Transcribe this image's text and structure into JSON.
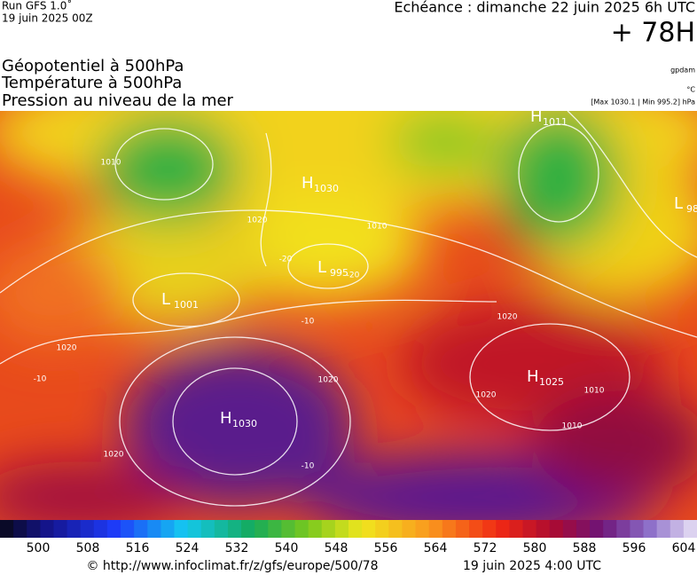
{
  "header": {
    "run": "Run GFS 1.0˚",
    "run_date": "19 juin 2025 00Z",
    "forecast": "Echéance : dimanche 22 juin 2025 6h UTC",
    "lead": "+ 78H",
    "titles": [
      "Géopotentiel à 500hPa",
      "Température à 500hPa",
      "Pression au niveau de la mer"
    ],
    "units": [
      "gpdam",
      "°C",
      "[Max 1030.1 | Min 995.2] hPa"
    ]
  },
  "map": {
    "pressure_centers": [
      {
        "type": "H",
        "value": "1011"
      },
      {
        "type": "L",
        "value": "98"
      },
      {
        "type": "H",
        "value": "1030"
      },
      {
        "type": "L",
        "value": "995"
      },
      {
        "type": "L",
        "value": "1001"
      },
      {
        "type": "H",
        "value": "1025"
      },
      {
        "type": "H",
        "value": "1030"
      }
    ],
    "isobar_labels": [
      "1010",
      "1020",
      "1010",
      "-20",
      "-20",
      "-10",
      "1020",
      "1020",
      "-10",
      "1020",
      "1020",
      "1010",
      "1020",
      "1010",
      "-10"
    ]
  },
  "colorbar": {
    "labels": [
      500,
      508,
      516,
      524,
      532,
      540,
      548,
      556,
      564,
      572,
      580,
      588,
      596,
      604
    ]
  },
  "footer": {
    "url": "© http://www.infoclimat.fr/z/gfs/europe/500/78",
    "date": "19 juin 2025  4:00 UTC"
  }
}
